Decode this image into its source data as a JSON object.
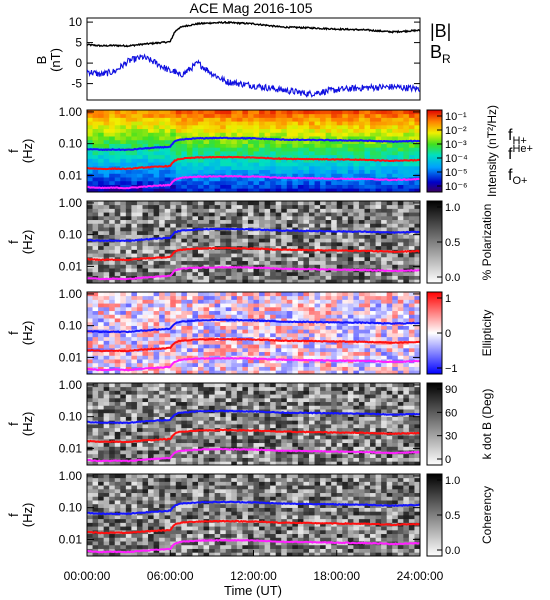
{
  "title": "ACE Mag 2016-105",
  "colors": {
    "B_total": "#000000",
    "B_R": "#1010e0",
    "f_H": "#1515ff",
    "f_He": "#ff1010",
    "f_O": "#ff20ff"
  },
  "chart_data": [
    {
      "type": "line",
      "panel": "magnetic-field",
      "ylabel": "B (nT)",
      "ylim": [
        -9,
        11
      ],
      "yticks": [
        10,
        5,
        0,
        -5
      ],
      "legend": [
        "|B|",
        "B_R"
      ],
      "legend_placement": "right",
      "x_hours": [
        0,
        1,
        2,
        3,
        4,
        5,
        6,
        6.3,
        6.6,
        7,
        8,
        9,
        10,
        12,
        14,
        16,
        18,
        20,
        22,
        24
      ],
      "series": [
        {
          "name": "|B|",
          "values": [
            4.5,
            4.2,
            4.3,
            4.2,
            4.6,
            4.9,
            5.2,
            7.5,
            8.5,
            9.0,
            9.6,
            9.8,
            9.9,
            9.6,
            8.8,
            8.6,
            8.3,
            8.1,
            7.6,
            8.0
          ]
        },
        {
          "name": "B_R",
          "values": [
            -2,
            -2.8,
            -2.0,
            0.5,
            1.5,
            0.0,
            -2.0,
            -2.0,
            -3.0,
            -2.5,
            0.0,
            -2.5,
            -4.5,
            -5.5,
            -6.5,
            -7.5,
            -6.5,
            -6.0,
            -5.8,
            -6.3
          ]
        }
      ]
    },
    {
      "type": "heatmap",
      "panel": "intensity",
      "ylabel": "f (Hz)",
      "colorbar_label": "Intensity (nT²/Hz)",
      "colorbar_ticks": [
        "10⁻¹",
        "10⁻²",
        "10⁻³",
        "10⁻⁴",
        "10⁻⁵",
        "10⁻⁶"
      ],
      "legend": [
        "f_H+",
        "f_He+",
        "f_O+"
      ]
    },
    {
      "type": "heatmap",
      "panel": "polarization",
      "ylabel": "f (Hz)",
      "colorbar_label": "% Polarization",
      "colorbar_ticks": [
        "1.0",
        "0.5",
        "0.0"
      ]
    },
    {
      "type": "heatmap",
      "panel": "ellipticity",
      "ylabel": "f (Hz)",
      "colorbar_label": "Ellipticity",
      "colorbar_ticks": [
        "1",
        "0",
        "−1"
      ]
    },
    {
      "type": "heatmap",
      "panel": "k-dot-b",
      "ylabel": "f (Hz)",
      "colorbar_label": "k dot B (Deg)",
      "colorbar_ticks": [
        "90",
        "60",
        "30",
        "0"
      ]
    },
    {
      "type": "heatmap",
      "panel": "coherency",
      "ylabel": "f (Hz)",
      "colorbar_label": "Coherency",
      "colorbar_ticks": [
        "1.0",
        "0.5",
        "0.0"
      ]
    }
  ],
  "gyrofrequency": {
    "ylim_hz": [
      0.003,
      1.15
    ],
    "yticks": [
      "1.00",
      "0.10",
      "0.01"
    ],
    "x_hours": [
      0,
      1,
      2,
      3,
      4,
      5,
      6,
      6.3,
      6.6,
      7,
      8,
      9,
      10,
      12,
      14,
      16,
      18,
      20,
      22,
      24
    ],
    "f_H": [
      0.068,
      0.064,
      0.065,
      0.064,
      0.07,
      0.075,
      0.08,
      0.115,
      0.13,
      0.137,
      0.147,
      0.15,
      0.151,
      0.147,
      0.134,
      0.131,
      0.127,
      0.124,
      0.116,
      0.122
    ],
    "f_He": [
      0.017,
      0.016,
      0.0163,
      0.016,
      0.0176,
      0.0187,
      0.0198,
      0.0287,
      0.0325,
      0.0343,
      0.0366,
      0.0373,
      0.0378,
      0.0366,
      0.0336,
      0.0328,
      0.0317,
      0.0309,
      0.029,
      0.0305
    ],
    "f_O": [
      0.0043,
      0.004,
      0.0041,
      0.004,
      0.0044,
      0.0047,
      0.005,
      0.0072,
      0.0081,
      0.0086,
      0.0092,
      0.0093,
      0.0094,
      0.0092,
      0.0084,
      0.0082,
      0.0079,
      0.0077,
      0.0072,
      0.0076
    ]
  },
  "x_axis": {
    "label": "Time (UT)",
    "range_hours": [
      0,
      24
    ],
    "tick_labels": [
      "00:00:00",
      "06:00:00",
      "12:00:00",
      "18:00:00",
      "24:00:00"
    ]
  },
  "labels": {
    "B": "B",
    "nT": "(nT)",
    "B_abs": "|B|",
    "B_R_main": "B",
    "B_R_sub": "R",
    "f": "f",
    "hz": "(Hz)",
    "f_H_main": "f",
    "f_H_sub": "H+",
    "f_He_main": "f",
    "f_He_sub": "He+",
    "f_O_main": "f",
    "f_O_sub": "O+"
  }
}
